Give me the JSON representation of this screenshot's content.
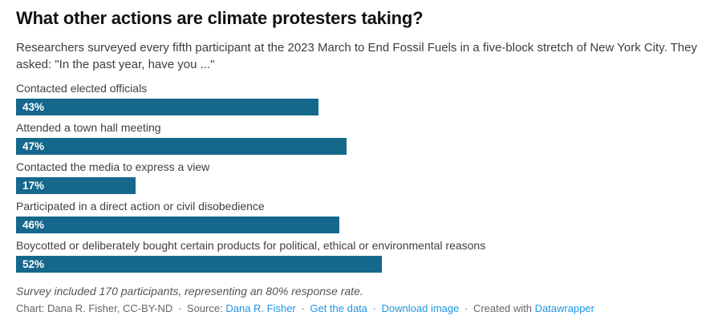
{
  "header": {
    "title": "What other actions are climate protesters taking?",
    "subtitle": "Researchers surveyed every fifth participant at the 2023 March to End Fossil Fuels in a five-block stretch of New York City. They asked: \"In the past year, have you ...\""
  },
  "chart_data": {
    "type": "bar",
    "orientation": "horizontal",
    "categories": [
      "Contacted elected officials",
      "Attended a town hall meeting",
      "Contacted the media to express a view",
      "Participated in a direct action or civil disobedience",
      "Boycotted or deliberately bought certain products for political, ethical or environmental reasons"
    ],
    "values": [
      43,
      47,
      17,
      46,
      52
    ],
    "value_suffix": "%",
    "xlim": [
      0,
      100
    ],
    "grid": false,
    "legend": false,
    "value_labels_inside_bars": true
  },
  "footer": {
    "note": "Survey included 170 participants, representing an 80% response rate.",
    "separator": "·",
    "credit_parts": [
      {
        "text": "Chart: Dana R. Fisher, CC-BY-ND",
        "link": false,
        "sep": false
      },
      {
        "text": "Source:",
        "link": false,
        "sep": true
      },
      {
        "text": "Dana R. Fisher",
        "link": true,
        "sep": false
      },
      {
        "text": "Get the data",
        "link": true,
        "sep": true
      },
      {
        "text": "Download image",
        "link": true,
        "sep": true
      },
      {
        "text": "Created with",
        "link": false,
        "sep": true
      },
      {
        "text": "Datawrapper",
        "link": true,
        "sep": false
      }
    ]
  },
  "colors": {
    "bar": "#15688c",
    "link": "#1e96e0",
    "title_text": "#121212",
    "muted_text": "#666666"
  }
}
